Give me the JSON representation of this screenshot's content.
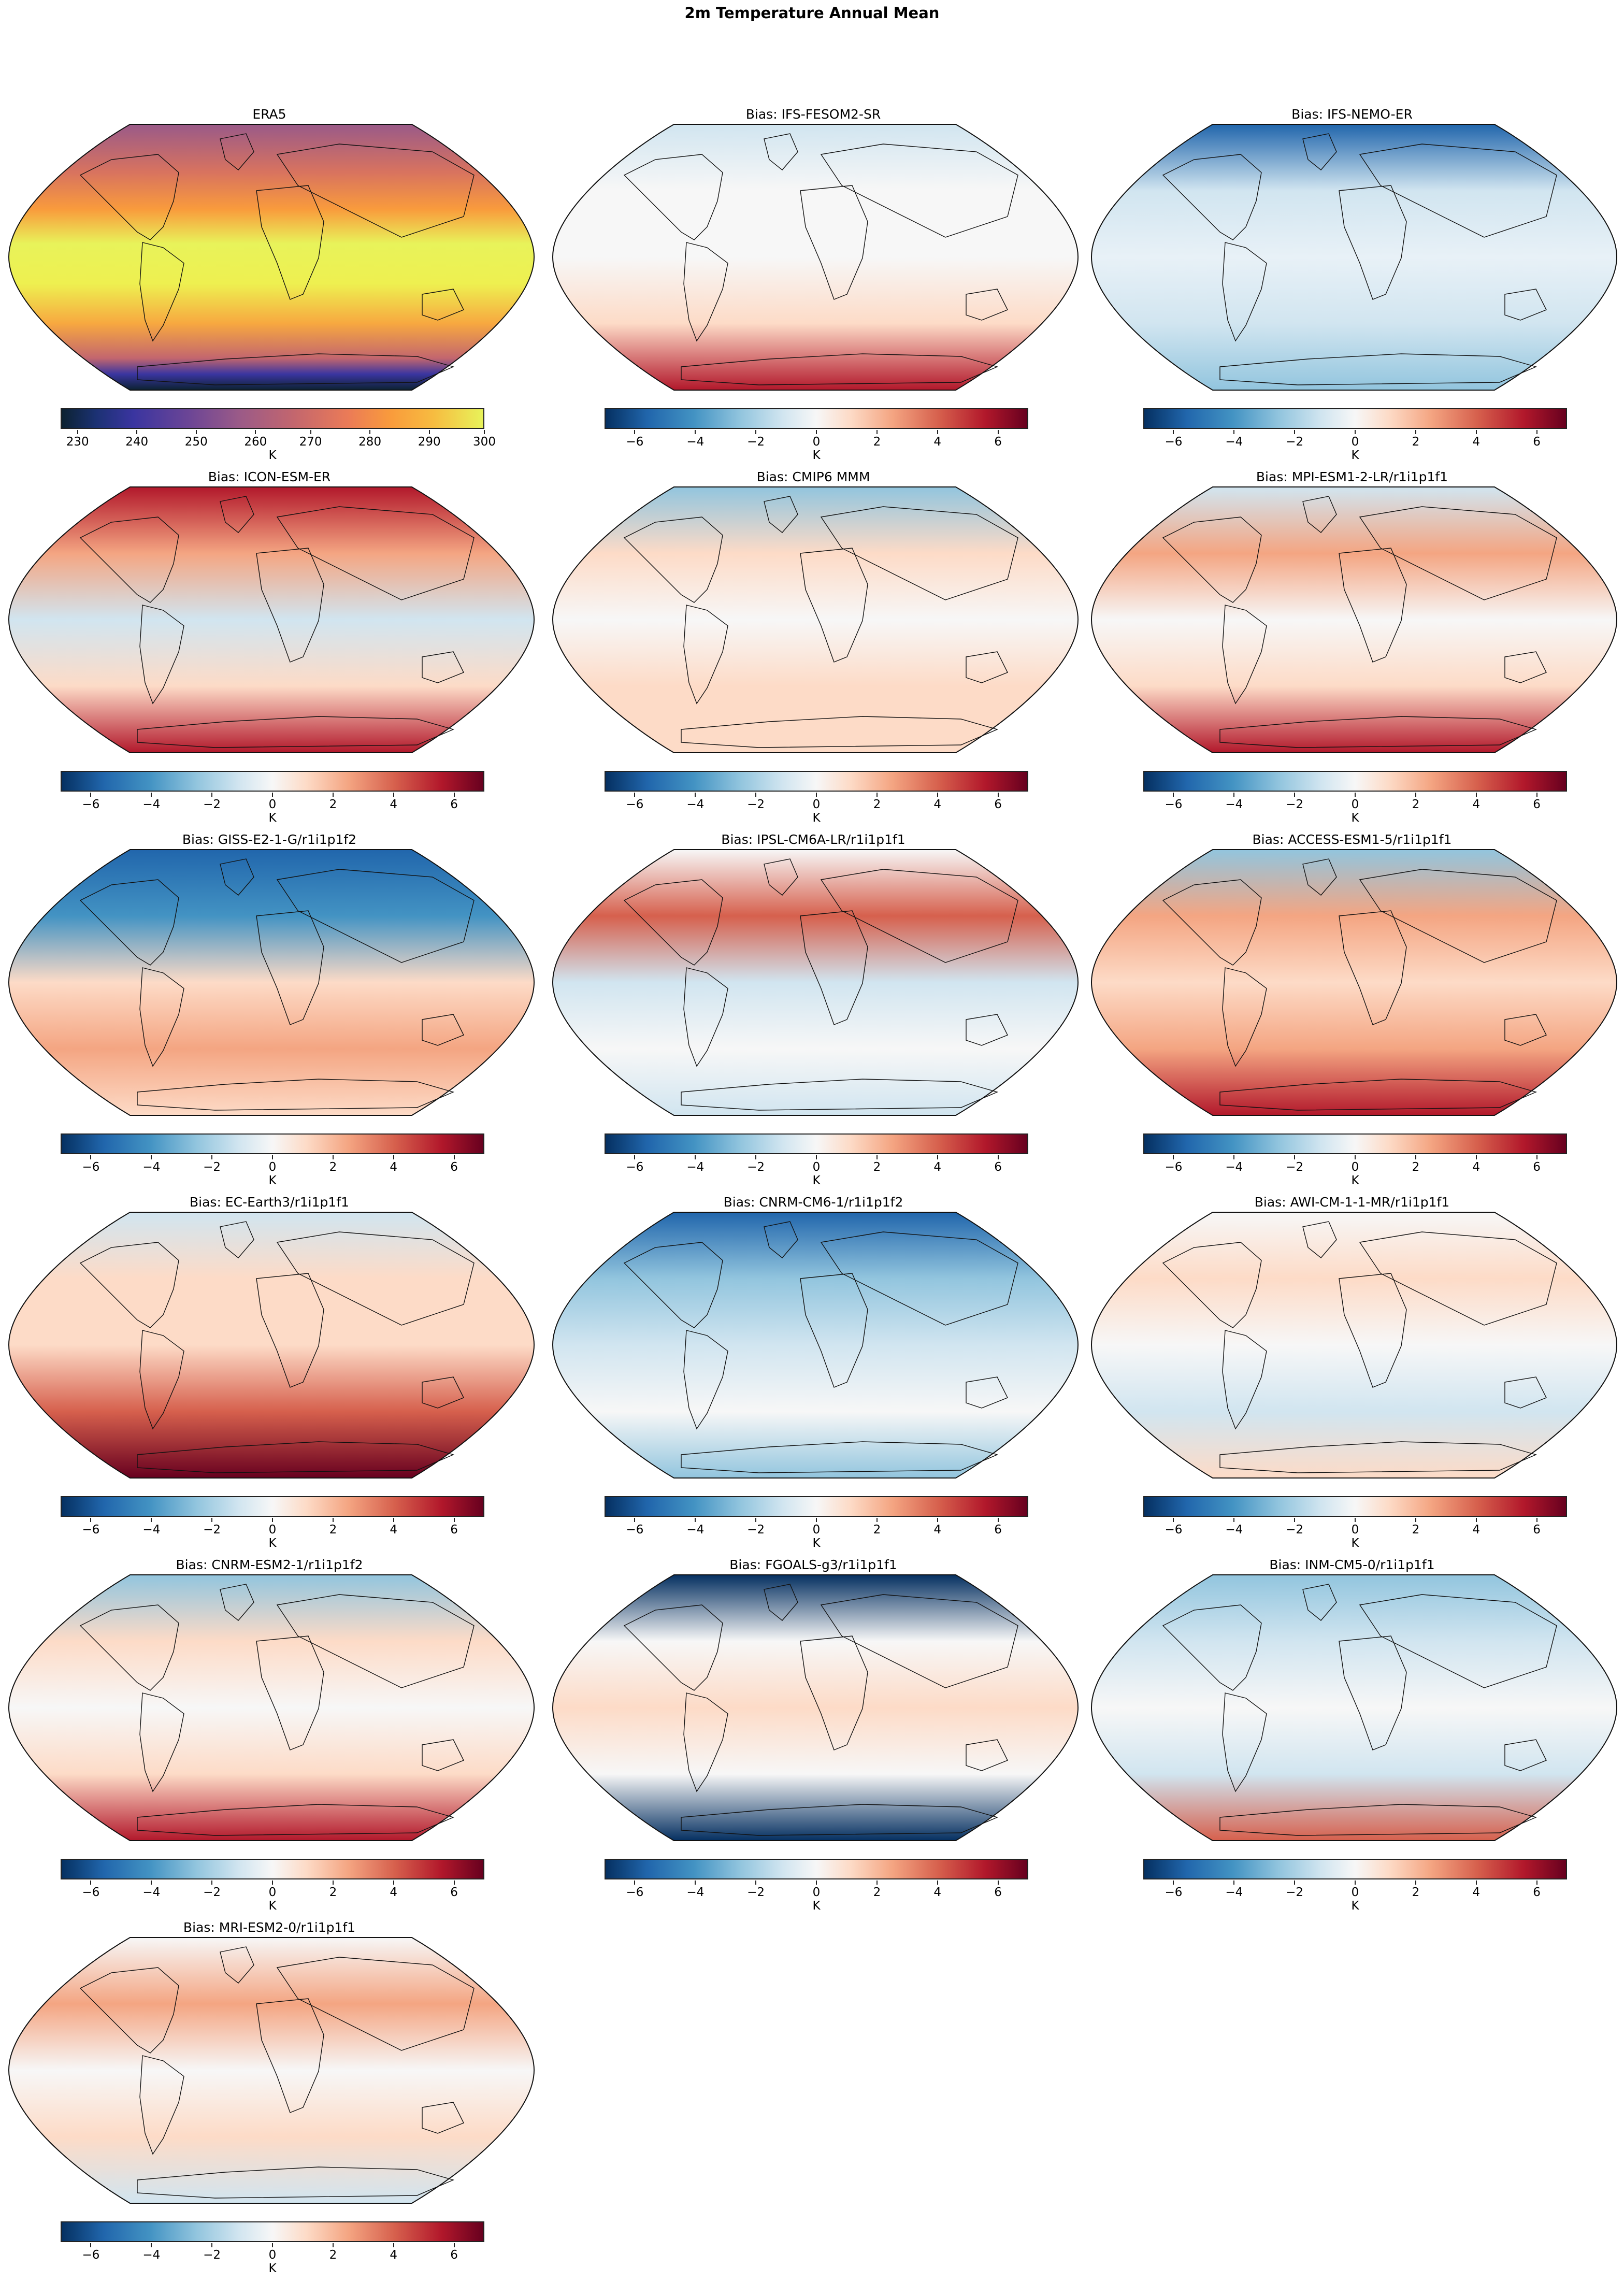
{
  "figure": {
    "title": "2m Temperature Annual Mean"
  },
  "colorbars": {
    "reference": {
      "label": "K",
      "cmap": "plasma-like (dark navy → purple → orange → yellow)",
      "range": [
        227,
        300.5
      ],
      "ticks": [
        "230",
        "240",
        "250",
        "260",
        "270",
        "280",
        "290",
        "300"
      ]
    },
    "bias": {
      "label": "K",
      "cmap": "RdBu_r",
      "range": [
        -7,
        7
      ],
      "ticks": [
        "−6",
        "−4",
        "−2",
        "0",
        "2",
        "4",
        "6"
      ]
    }
  },
  "panels": [
    {
      "title": "ERA5",
      "type": "reference"
    },
    {
      "title": "Bias: IFS-FESOM2-SR",
      "type": "bias"
    },
    {
      "title": "Bias: IFS-NEMO-ER",
      "type": "bias"
    },
    {
      "title": "Bias: ICON-ESM-ER",
      "type": "bias"
    },
    {
      "title": "Bias: CMIP6 MMM",
      "type": "bias"
    },
    {
      "title": "Bias: MPI-ESM1-2-LR/r1i1p1f1",
      "type": "bias"
    },
    {
      "title": "Bias: GISS-E2-1-G/r1i1p1f2",
      "type": "bias"
    },
    {
      "title": "Bias: IPSL-CM6A-LR/r1i1p1f1",
      "type": "bias"
    },
    {
      "title": "Bias: ACCESS-ESM1-5/r1i1p1f1",
      "type": "bias"
    },
    {
      "title": "Bias: EC-Earth3/r1i1p1f1",
      "type": "bias"
    },
    {
      "title": "Bias: CNRM-CM6-1/r1i1p1f2",
      "type": "bias"
    },
    {
      "title": "Bias: AWI-CM-1-1-MR/r1i1p1f1",
      "type": "bias"
    },
    {
      "title": "Bias: CNRM-ESM2-1/r1i1p1f2",
      "type": "bias"
    },
    {
      "title": "Bias: FGOALS-g3/r1i1p1f1",
      "type": "bias"
    },
    {
      "title": "Bias: INM-CM5-0/r1i1p1f1",
      "type": "bias"
    },
    {
      "title": "Bias: MRI-ESM2-0/r1i1p1f1",
      "type": "bias"
    }
  ],
  "chart_data": {
    "type": "heatmap",
    "title": "2m Temperature Annual Mean",
    "projection": "Robinson (global map)",
    "layout": {
      "rows": 6,
      "cols": 3,
      "panels": 16
    },
    "subplots": [
      {
        "title": "ERA5",
        "quantity": "2m temperature",
        "units": "K",
        "colorbar_range": [
          227,
          300
        ],
        "colorbar_ticks": [
          230,
          240,
          250,
          260,
          270,
          280,
          290,
          300
        ],
        "colorbar_label": "K"
      },
      {
        "title": "Bias: IFS-FESOM2-SR",
        "units": "K",
        "colorbar_range": [
          -7,
          7
        ],
        "colorbar_ticks": [
          -6,
          -4,
          -2,
          0,
          2,
          4,
          6
        ],
        "colorbar_label": "K"
      },
      {
        "title": "Bias: IFS-NEMO-ER",
        "units": "K",
        "colorbar_range": [
          -7,
          7
        ],
        "colorbar_ticks": [
          -6,
          -4,
          -2,
          0,
          2,
          4,
          6
        ],
        "colorbar_label": "K"
      },
      {
        "title": "Bias: ICON-ESM-ER",
        "units": "K",
        "colorbar_range": [
          -7,
          7
        ],
        "colorbar_ticks": [
          -6,
          -4,
          -2,
          0,
          2,
          4,
          6
        ],
        "colorbar_label": "K"
      },
      {
        "title": "Bias: CMIP6 MMM",
        "units": "K",
        "colorbar_range": [
          -7,
          7
        ],
        "colorbar_ticks": [
          -6,
          -4,
          -2,
          0,
          2,
          4,
          6
        ],
        "colorbar_label": "K"
      },
      {
        "title": "Bias: MPI-ESM1-2-LR/r1i1p1f1",
        "units": "K",
        "colorbar_range": [
          -7,
          7
        ],
        "colorbar_ticks": [
          -6,
          -4,
          -2,
          0,
          2,
          4,
          6
        ],
        "colorbar_label": "K"
      },
      {
        "title": "Bias: GISS-E2-1-G/r1i1p1f2",
        "units": "K",
        "colorbar_range": [
          -7,
          7
        ],
        "colorbar_ticks": [
          -6,
          -4,
          -2,
          0,
          2,
          4,
          6
        ],
        "colorbar_label": "K"
      },
      {
        "title": "Bias: IPSL-CM6A-LR/r1i1p1f1",
        "units": "K",
        "colorbar_range": [
          -7,
          7
        ],
        "colorbar_ticks": [
          -6,
          -4,
          -2,
          0,
          2,
          4,
          6
        ],
        "colorbar_label": "K"
      },
      {
        "title": "Bias: ACCESS-ESM1-5/r1i1p1f1",
        "units": "K",
        "colorbar_range": [
          -7,
          7
        ],
        "colorbar_ticks": [
          -6,
          -4,
          -2,
          0,
          2,
          4,
          6
        ],
        "colorbar_label": "K"
      },
      {
        "title": "Bias: EC-Earth3/r1i1p1f1",
        "units": "K",
        "colorbar_range": [
          -7,
          7
        ],
        "colorbar_ticks": [
          -6,
          -4,
          -2,
          0,
          2,
          4,
          6
        ],
        "colorbar_label": "K"
      },
      {
        "title": "Bias: CNRM-CM6-1/r1i1p1f2",
        "units": "K",
        "colorbar_range": [
          -7,
          7
        ],
        "colorbar_ticks": [
          -6,
          -4,
          -2,
          0,
          2,
          4,
          6
        ],
        "colorbar_label": "K"
      },
      {
        "title": "Bias: AWI-CM-1-1-MR/r1i1p1f1",
        "units": "K",
        "colorbar_range": [
          -7,
          7
        ],
        "colorbar_ticks": [
          -6,
          -4,
          -2,
          0,
          2,
          4,
          6
        ],
        "colorbar_label": "K"
      },
      {
        "title": "Bias: CNRM-ESM2-1/r1i1p1f2",
        "units": "K",
        "colorbar_range": [
          -7,
          7
        ],
        "colorbar_ticks": [
          -6,
          -4,
          -2,
          0,
          2,
          4,
          6
        ],
        "colorbar_label": "K"
      },
      {
        "title": "Bias: FGOALS-g3/r1i1p1f1",
        "units": "K",
        "colorbar_range": [
          -7,
          7
        ],
        "colorbar_ticks": [
          -6,
          -4,
          -2,
          0,
          2,
          4,
          6
        ],
        "colorbar_label": "K"
      },
      {
        "title": "Bias: INM-CM5-0/r1i1p1f1",
        "units": "K",
        "colorbar_range": [
          -7,
          7
        ],
        "colorbar_ticks": [
          -6,
          -4,
          -2,
          0,
          2,
          4,
          6
        ],
        "colorbar_label": "K"
      },
      {
        "title": "Bias: MRI-ESM2-0/r1i1p1f1",
        "units": "K",
        "colorbar_range": [
          -7,
          7
        ],
        "colorbar_ticks": [
          -6,
          -4,
          -2,
          0,
          2,
          4,
          6
        ],
        "colorbar_label": "K"
      }
    ]
  }
}
